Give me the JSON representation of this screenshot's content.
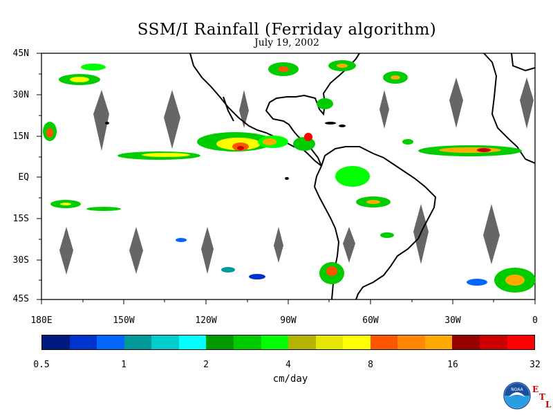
{
  "title": "SSM/I Rainfall (Ferriday algorithm)",
  "subtitle": "July 19, 2002",
  "lat_labels": [
    "45N",
    "30N",
    "15N",
    "EQ",
    "15S",
    "30S",
    "45S"
  ],
  "lon_labels": [
    "180E",
    "150W",
    "120W",
    "90W",
    "60W",
    "30W",
    "0"
  ],
  "colorbar": {
    "colors": [
      "#001a80",
      "#0033cc",
      "#0066ff",
      "#009999",
      "#00cccc",
      "#00ffff",
      "#009900",
      "#00cc00",
      "#00ff00",
      "#b3b300",
      "#e6e600",
      "#ffff00",
      "#ff5500",
      "#ff8800",
      "#ffaa00",
      "#990000",
      "#cc0000",
      "#ff0000"
    ],
    "tick_labels": [
      "0.5",
      "1",
      "2",
      "4",
      "8",
      "16",
      "32"
    ],
    "units": "cm/day"
  },
  "logo": {
    "name": "NOAA",
    "side_letters": [
      "E",
      "T",
      "L"
    ]
  },
  "colors": {
    "land": "#000000",
    "swath_gap": "#666666",
    "rain_light": "#00cc00",
    "rain_heavy": "#ff0000"
  }
}
